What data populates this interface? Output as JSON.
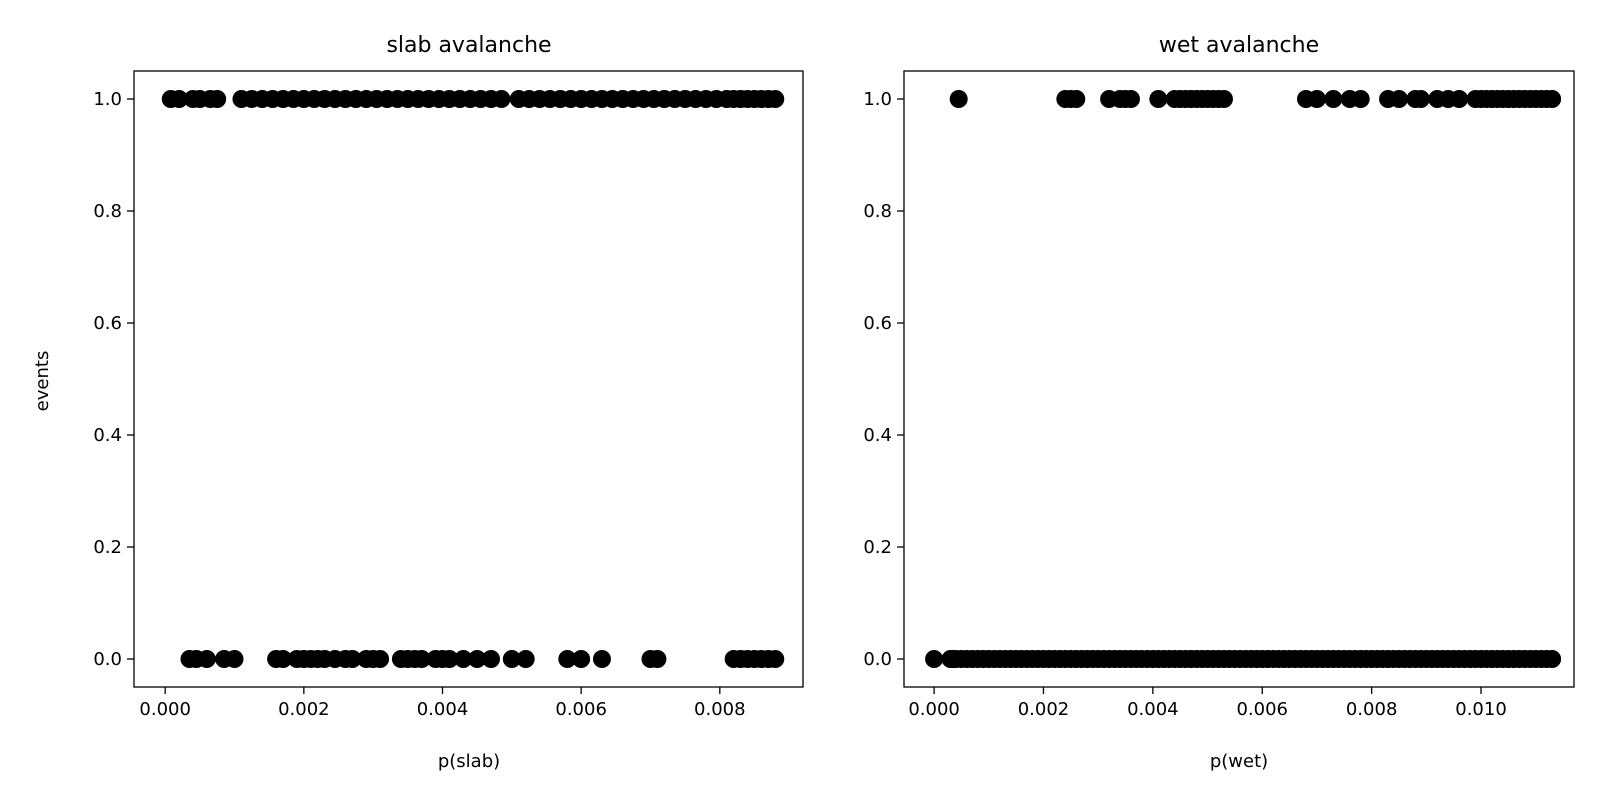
{
  "figure": {
    "background": "#ffffff",
    "marker_color": "#000000"
  },
  "chart_data": [
    {
      "type": "scatter",
      "title": "slab avalanche",
      "xlabel": "p(slab)",
      "ylabel": "events",
      "xlim": [
        -0.00045,
        0.0092
      ],
      "ylim": [
        -0.05,
        1.05
      ],
      "xticks": [
        "0.000",
        "0.002",
        "0.004",
        "0.006",
        "0.008"
      ],
      "xtick_values": [
        0,
        0.002,
        0.004,
        0.006,
        0.008
      ],
      "yticks": [
        "0.0",
        "0.2",
        "0.4",
        "0.6",
        "0.8",
        "1.0"
      ],
      "ytick_values": [
        0,
        0.2,
        0.4,
        0.6,
        0.8,
        1.0
      ],
      "grid": false,
      "series": [
        {
          "y": 1,
          "x": [
            8e-05,
            0.0002,
            0.0004,
            0.0005,
            0.00065,
            0.00075,
            0.0011,
            0.00125,
            0.0014,
            0.00155,
            0.0017,
            0.00185,
            0.002,
            0.00215,
            0.0023,
            0.00245,
            0.0026,
            0.00275,
            0.0029,
            0.00305,
            0.0032,
            0.00335,
            0.0035,
            0.00365,
            0.0038,
            0.00395,
            0.0041,
            0.00425,
            0.0044,
            0.00455,
            0.0047,
            0.00485,
            0.0051,
            0.00525,
            0.0054,
            0.00555,
            0.0057,
            0.00585,
            0.006,
            0.00615,
            0.0063,
            0.00645,
            0.0066,
            0.00675,
            0.0069,
            0.00705,
            0.0072,
            0.00735,
            0.0075,
            0.00765,
            0.0078,
            0.00795,
            0.0081,
            0.0082,
            0.0083,
            0.0084,
            0.0085,
            0.0086,
            0.0087,
            0.0088
          ]
        },
        {
          "y": 0,
          "x": [
            0.00035,
            0.00045,
            0.0006,
            0.00085,
            0.001,
            0.0016,
            0.0017,
            0.0019,
            0.002,
            0.0021,
            0.0022,
            0.0023,
            0.00245,
            0.0026,
            0.0027,
            0.0029,
            0.003,
            0.0031,
            0.0034,
            0.0035,
            0.0036,
            0.0037,
            0.0039,
            0.004,
            0.0041,
            0.0043,
            0.0045,
            0.0047,
            0.005,
            0.0052,
            0.0058,
            0.006,
            0.0063,
            0.007,
            0.0071,
            0.0082,
            0.0083,
            0.0084,
            0.0085,
            0.0086,
            0.0087,
            0.0088
          ]
        }
      ]
    },
    {
      "type": "scatter",
      "title": "wet avalanche",
      "xlabel": "p(wet)",
      "ylabel": "",
      "xlim": [
        -0.00055,
        0.0117
      ],
      "ylim": [
        -0.05,
        1.05
      ],
      "xticks": [
        "0.000",
        "0.002",
        "0.004",
        "0.006",
        "0.008",
        "0.010"
      ],
      "xtick_values": [
        0,
        0.002,
        0.004,
        0.006,
        0.008,
        0.01
      ],
      "yticks": [
        "0.0",
        "0.2",
        "0.4",
        "0.6",
        "0.8",
        "1.0"
      ],
      "ytick_values": [
        0,
        0.2,
        0.4,
        0.6,
        0.8,
        1.0
      ],
      "grid": false,
      "series": [
        {
          "y": 1,
          "x": [
            0.00045,
            0.0024,
            0.0025,
            0.0026,
            0.0032,
            0.0034,
            0.0035,
            0.0036,
            0.0041,
            0.0044,
            0.0045,
            0.0046,
            0.0047,
            0.0048,
            0.0049,
            0.005,
            0.0051,
            0.0052,
            0.0053,
            0.0068,
            0.007,
            0.0073,
            0.0076,
            0.0078,
            0.0083,
            0.0085,
            0.0088,
            0.0089,
            0.0092,
            0.0094,
            0.0096,
            0.0099,
            0.01,
            0.0101,
            0.0102,
            0.0103,
            0.0104,
            0.0105,
            0.0106,
            0.0107,
            0.0108,
            0.0109,
            0.011,
            0.0111,
            0.0112,
            0.0113
          ]
        },
        {
          "y": 0,
          "x": [
            0.0,
            0.0003,
            0.00035,
            0.0004,
            0.0005,
            0.0006,
            0.0007,
            0.0008,
            0.0009,
            0.001,
            0.0011,
            0.0012,
            0.0013,
            0.0014,
            0.0015,
            0.0016,
            0.0017,
            0.0018,
            0.0019,
            0.002,
            0.0021,
            0.0022,
            0.0023,
            0.0024,
            0.0025,
            0.0026,
            0.0027,
            0.0028,
            0.0029,
            0.003,
            0.0031,
            0.0032,
            0.0033,
            0.0034,
            0.0035,
            0.0036,
            0.0037,
            0.0038,
            0.0039,
            0.004,
            0.0041,
            0.0042,
            0.0043,
            0.0044,
            0.0045,
            0.0046,
            0.0047,
            0.0048,
            0.0049,
            0.005,
            0.0051,
            0.0052,
            0.0053,
            0.0054,
            0.0055,
            0.0056,
            0.0057,
            0.0058,
            0.0059,
            0.006,
            0.0061,
            0.0062,
            0.0063,
            0.0064,
            0.0065,
            0.0066,
            0.0067,
            0.0068,
            0.0069,
            0.007,
            0.0071,
            0.0072,
            0.0073,
            0.0074,
            0.0075,
            0.0076,
            0.0077,
            0.0078,
            0.0079,
            0.008,
            0.0081,
            0.0082,
            0.0083,
            0.0084,
            0.0085,
            0.0086,
            0.0087,
            0.0088,
            0.0089,
            0.009,
            0.0091,
            0.0092,
            0.0093,
            0.0094,
            0.0095,
            0.0096,
            0.0097,
            0.0098,
            0.0099,
            0.01,
            0.0101,
            0.0102,
            0.0103,
            0.0104,
            0.0105,
            0.0106,
            0.0107,
            0.0108,
            0.0109,
            0.011,
            0.0111,
            0.0112,
            0.0113
          ]
        }
      ]
    }
  ]
}
